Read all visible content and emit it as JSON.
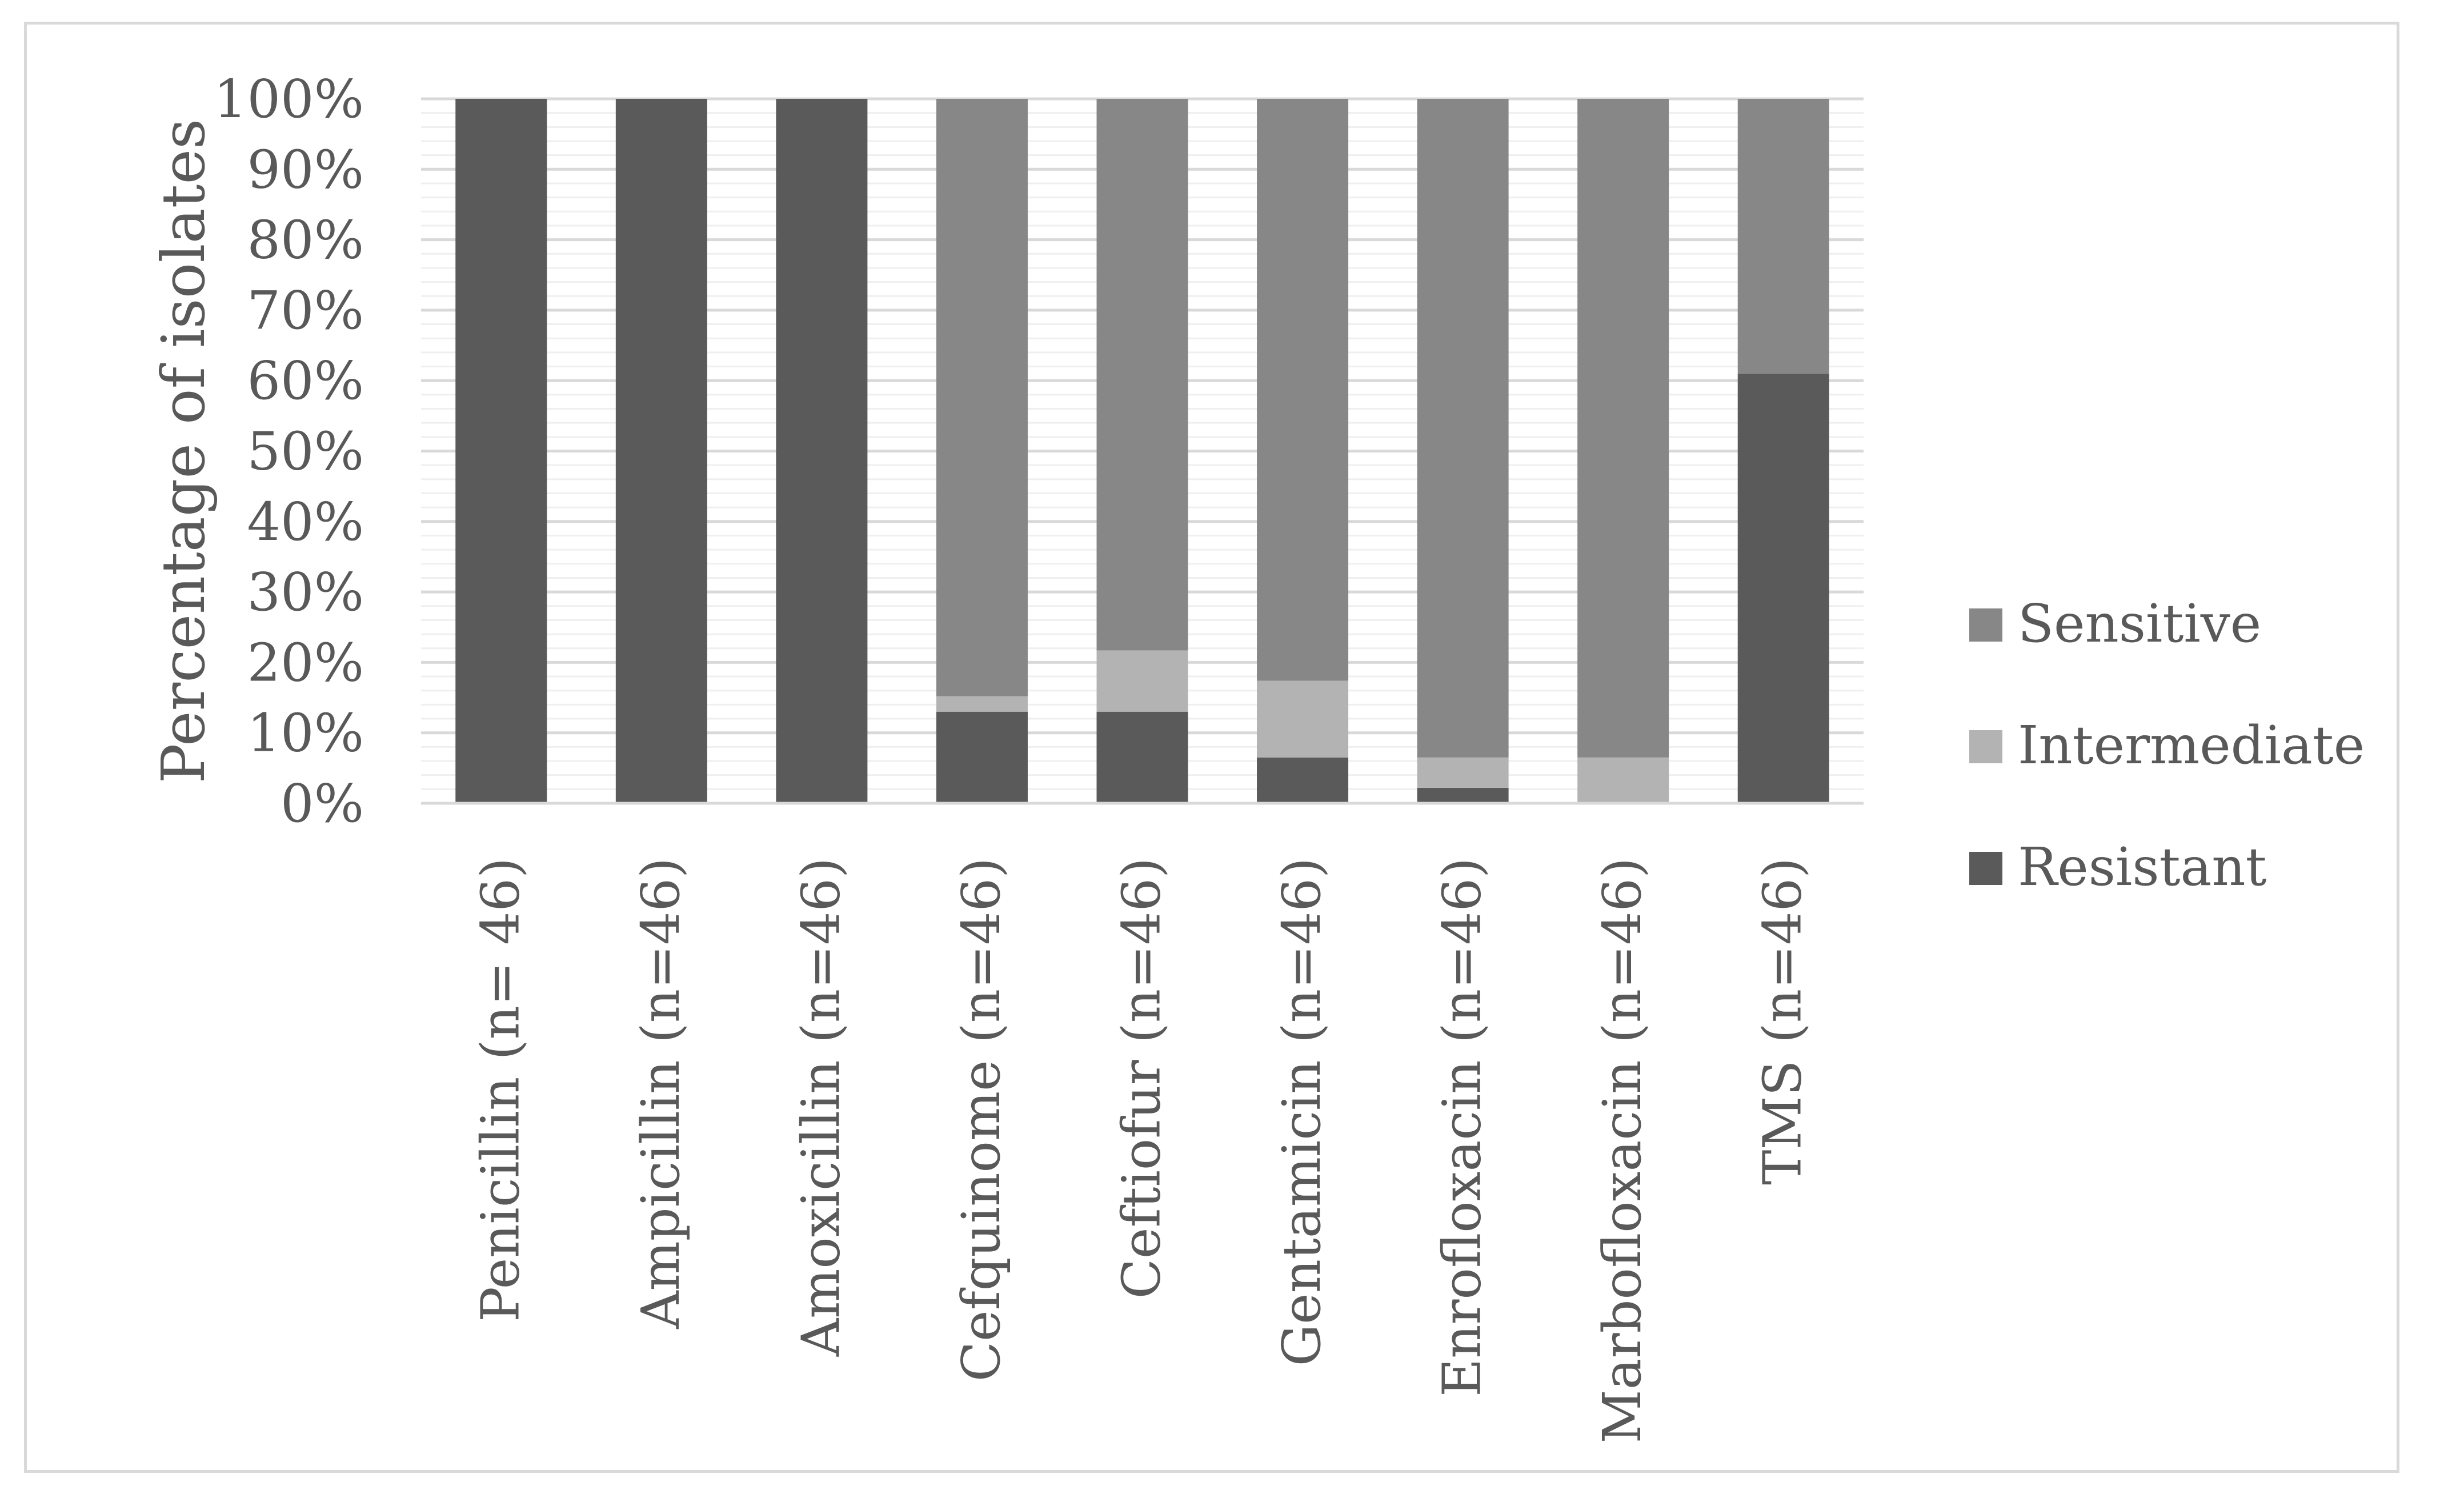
{
  "chart_data": {
    "type": "bar",
    "stacked": true,
    "percent_stacked": true,
    "title": "",
    "xlabel": "",
    "ylabel": "Percentage of isolates",
    "ylim": [
      0,
      100
    ],
    "y_ticks": [
      "0%",
      "10%",
      "20%",
      "30%",
      "40%",
      "50%",
      "60%",
      "70%",
      "80%",
      "90%",
      "100%"
    ],
    "grid": true,
    "legend_position": "right",
    "categories": [
      "Penicillin (n= 46)",
      "Ampicillin (n=46)",
      "Amoxicillin (n=46)",
      "Cefquinome (n=46)",
      "Ceftiofur (n=46)",
      "Gentamicin (n=46)",
      "Enrofloxacin (n=46)",
      "Marbofloxacin  (n=46)",
      "TMS (n=46)"
    ],
    "series": [
      {
        "name": "Resistant",
        "color": "#5a5a5a",
        "values": [
          100,
          100,
          100,
          13,
          13,
          6.5,
          2.2,
          0,
          61
        ]
      },
      {
        "name": "Intermediate",
        "color": "#b3b3b3",
        "values": [
          0,
          0,
          0,
          2.2,
          8.7,
          10.9,
          4.3,
          6.5,
          0
        ]
      },
      {
        "name": "Sensitive",
        "color": "#878787",
        "values": [
          0,
          0,
          0,
          84.8,
          78.3,
          82.6,
          93.5,
          93.5,
          39
        ]
      }
    ],
    "legend_order": [
      "Sensitive",
      "Intermediate",
      "Resistant"
    ]
  }
}
